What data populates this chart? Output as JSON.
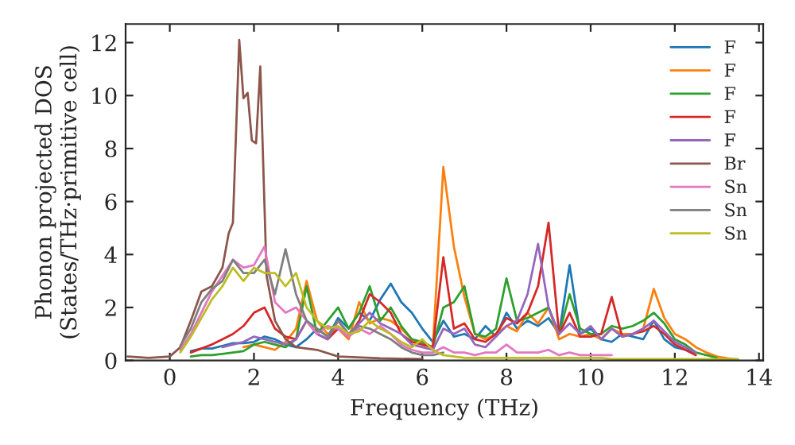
{
  "chart_data": {
    "type": "line",
    "xlabel": "Frequency (THz)",
    "ylabel": "Phonon projected DOS\n(States/THz·primitive cell)",
    "xlim": [
      -1.05,
      14.1
    ],
    "ylim": [
      0,
      12.7
    ],
    "xticks": [
      0,
      2,
      4,
      6,
      8,
      10,
      12,
      14
    ],
    "yticks": [
      0,
      2,
      4,
      6,
      8,
      10,
      12
    ],
    "grid": false,
    "legend": "top right",
    "line_style": "solid",
    "marker": "none",
    "x": [
      0.25,
      0.5,
      0.75,
      1,
      1.25,
      1.5,
      1.75,
      2,
      2.25,
      2.5,
      2.75,
      3,
      3.25,
      3.5,
      3.75,
      4,
      4.25,
      4.5,
      4.75,
      5,
      5.25,
      5.5,
      5.75,
      6,
      6.25,
      6.5,
      6.75,
      7,
      7.25,
      7.5,
      7.75,
      8,
      8.25,
      8.5,
      8.75,
      9,
      9.25,
      9.5,
      9.75,
      10,
      10.25,
      10.5,
      10.75,
      11,
      11.25,
      11.5,
      11.75,
      12,
      12.25,
      12.5,
      12.75,
      13,
      13.25,
      13.5
    ],
    "series": [
      {
        "name": "F",
        "color": "#1f77b4",
        "values": [
          null,
          0.35,
          0.45,
          0.45,
          0.55,
          0.65,
          0.65,
          0.7,
          0.9,
          0.8,
          0.6,
          0.5,
          0.8,
          1.2,
          0.9,
          1.6,
          1.2,
          1.8,
          1.5,
          2.3,
          2.9,
          2.2,
          1.8,
          1.2,
          0.7,
          1.5,
          0.9,
          1.0,
          0.8,
          1.3,
          0.9,
          1.8,
          1.2,
          1.5,
          1.3,
          1.6,
          1.0,
          3.6,
          1.0,
          1.2,
          0.8,
          0.7,
          1.0,
          0.9,
          0.8,
          1.5,
          0.8,
          0.5,
          0.4,
          0.3,
          null,
          null,
          null,
          null
        ]
      },
      {
        "name": "F",
        "color": "#ff7f0e",
        "values": [
          null,
          null,
          null,
          null,
          null,
          null,
          0.5,
          0.6,
          0.5,
          0.4,
          0.7,
          1.2,
          3.0,
          1.5,
          1.0,
          1.2,
          0.8,
          2.2,
          1.4,
          1.6,
          1.5,
          1.2,
          0.8,
          0.6,
          0.5,
          7.3,
          4.3,
          2.4,
          1.0,
          0.8,
          1.0,
          1.3,
          1.1,
          1.8,
          1.4,
          2.0,
          0.8,
          1.0,
          0.9,
          1.0,
          0.8,
          1.2,
          1.0,
          1.0,
          1.2,
          2.7,
          1.6,
          1.0,
          0.8,
          0.5,
          0.3,
          0.15,
          0.08,
          0.03
        ]
      },
      {
        "name": "F",
        "color": "#2ca02c",
        "values": [
          null,
          0.15,
          0.2,
          0.2,
          0.25,
          0.3,
          0.35,
          0.6,
          0.7,
          0.6,
          0.5,
          0.8,
          2.8,
          1.0,
          1.5,
          2.0,
          1.2,
          1.8,
          2.8,
          1.5,
          2.0,
          1.3,
          0.8,
          0.7,
          0.5,
          2.0,
          2.2,
          2.8,
          1.0,
          0.9,
          1.2,
          3.1,
          1.5,
          1.6,
          1.8,
          2.0,
          1.0,
          2.5,
          1.2,
          1.0,
          1.0,
          1.3,
          1.2,
          1.3,
          1.5,
          1.8,
          1.4,
          0.8,
          0.6,
          0.3,
          0.2,
          0.1,
          null,
          null
        ]
      },
      {
        "name": "F",
        "color": "#d62728",
        "values": [
          null,
          0.3,
          0.45,
          0.6,
          0.8,
          1.0,
          1.3,
          1.8,
          2.0,
          1.2,
          0.9,
          0.8,
          1.5,
          1.0,
          0.8,
          1.2,
          0.9,
          1.5,
          2.5,
          2.2,
          1.8,
          1.0,
          0.7,
          0.6,
          0.5,
          3.9,
          1.2,
          1.4,
          0.8,
          0.7,
          1.0,
          1.6,
          1.4,
          1.8,
          2.8,
          5.2,
          1.0,
          1.8,
          0.9,
          0.9,
          1.0,
          2.4,
          0.9,
          1.0,
          1.1,
          1.3,
          1.0,
          0.6,
          0.4,
          0.2,
          null,
          null,
          null,
          null
        ]
      },
      {
        "name": "F",
        "color": "#9467bd",
        "values": [
          null,
          null,
          null,
          null,
          0.5,
          0.6,
          0.7,
          0.9,
          0.8,
          0.7,
          0.6,
          0.8,
          1.5,
          1.0,
          0.8,
          1.5,
          1.0,
          1.4,
          1.8,
          1.4,
          1.2,
          1.0,
          0.6,
          0.5,
          0.4,
          1.2,
          1.0,
          1.2,
          0.6,
          0.5,
          0.9,
          1.3,
          1.5,
          2.5,
          4.4,
          2.0,
          1.0,
          1.4,
          1.0,
          1.3,
          0.8,
          1.2,
          0.9,
          1.0,
          1.2,
          1.5,
          1.1,
          0.7,
          0.5,
          0.3,
          null,
          null,
          null,
          null
        ]
      },
      {
        "name": "Br",
        "color": "#8c564b",
        "x": [
          -1,
          -0.5,
          0,
          0.25,
          0.5,
          0.75,
          1,
          1.25,
          1.4,
          1.5,
          1.65,
          1.75,
          1.85,
          1.95,
          2.05,
          2.15,
          2.3,
          2.5,
          2.75,
          3,
          3.5,
          4,
          5,
          6
        ],
        "values": [
          0.15,
          0.1,
          0.15,
          0.5,
          1.5,
          2.6,
          2.8,
          3.5,
          4.8,
          5.2,
          12.1,
          9.9,
          10.1,
          8.3,
          8.2,
          11.1,
          3.2,
          1.5,
          0.8,
          0.5,
          0.4,
          0.15,
          0.08,
          0.05
        ]
      },
      {
        "name": "Sn",
        "color": "#e377c2",
        "values": [
          0.4,
          1.0,
          1.8,
          2.6,
          3.2,
          3.8,
          3.5,
          3.6,
          4.3,
          2.2,
          1.8,
          2.0,
          1.5,
          1.0,
          1.3,
          1.2,
          0.9,
          1.2,
          1.0,
          1.3,
          1.0,
          0.6,
          0.4,
          0.3,
          0.3,
          0.5,
          0.3,
          0.3,
          0.2,
          0.3,
          0.3,
          0.6,
          0.3,
          0.3,
          0.3,
          0.4,
          0.2,
          0.3,
          0.2,
          0.2,
          0.2,
          0.2,
          null,
          null,
          null,
          null,
          null,
          null,
          null,
          null,
          null,
          null,
          null,
          null
        ]
      },
      {
        "name": "Sn",
        "color": "#7f7f7f",
        "values": [
          0.55,
          1.2,
          2.2,
          2.7,
          3.0,
          3.8,
          3.3,
          3.3,
          3.8,
          2.5,
          4.2,
          2.5,
          1.5,
          1.2,
          0.9,
          1.5,
          1.0,
          1.3,
          1.2,
          1.0,
          0.8,
          0.5,
          0.3,
          0.2,
          0.2,
          0.3,
          null,
          null,
          null,
          null,
          null,
          null,
          null,
          null,
          null,
          null,
          null,
          null,
          null,
          null,
          null,
          null,
          null,
          null,
          null,
          null,
          null,
          null,
          null,
          null,
          null,
          null,
          null,
          null
        ]
      },
      {
        "name": "Sn",
        "color": "#bcbd22",
        "values": [
          0.3,
          0.9,
          1.6,
          2.3,
          2.8,
          3.5,
          3.0,
          3.5,
          3.3,
          3.3,
          2.8,
          3.3,
          2.0,
          1.5,
          1.2,
          1.3,
          1.0,
          1.1,
          1.5,
          1.2,
          1.0,
          0.7,
          0.5,
          0.8,
          0.4,
          0.2,
          0.15,
          0.1,
          0.1,
          0.1,
          0.1,
          0.1,
          0.1,
          0.1,
          0.1,
          0.1,
          0.1,
          0.1,
          0.1,
          0.1,
          0.1,
          0.05,
          0.05,
          0.05,
          0.05,
          0.05,
          0.05,
          0.05,
          0.05,
          0.05,
          0.05,
          0.05,
          0.05,
          0.05
        ]
      }
    ]
  }
}
